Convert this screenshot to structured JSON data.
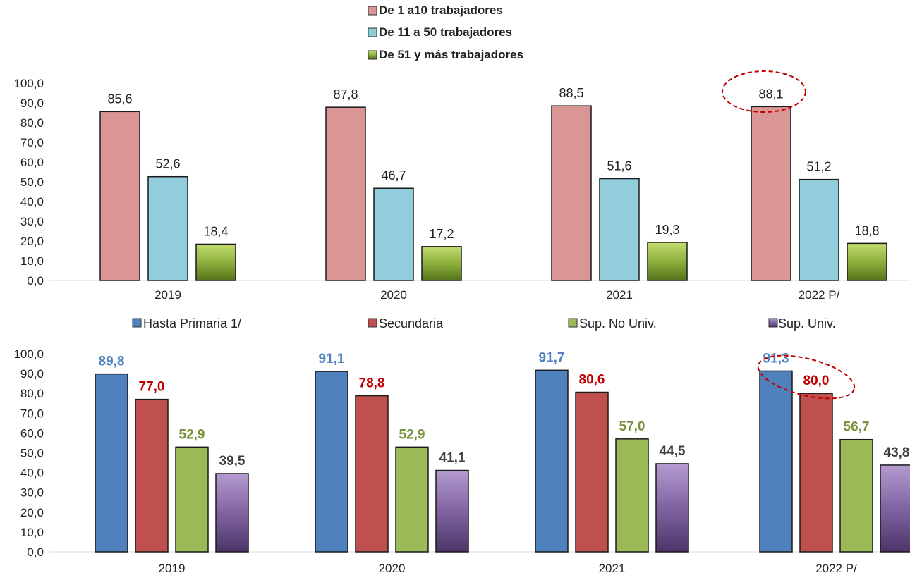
{
  "chart_data": [
    {
      "type": "bar",
      "categories": [
        "2019",
        "2020",
        "2021",
        "2022 P/"
      ],
      "series": [
        {
          "name": "De 1 a10 trabajadores",
          "values": [
            85.6,
            87.8,
            88.5,
            88.1
          ],
          "labels": [
            "85,6",
            "87,8",
            "88,5",
            "88,1"
          ],
          "color": "#DA9694"
        },
        {
          "name": "De 11 a 50 trabajadores",
          "values": [
            52.6,
            46.7,
            51.6,
            51.2
          ],
          "labels": [
            "52,6",
            "46,7",
            "51,6",
            "51,2"
          ],
          "color": "#92CDDC"
        },
        {
          "name": "De 51 y más trabajadores",
          "values": [
            18.4,
            17.2,
            19.3,
            18.8
          ],
          "labels": [
            "18,4",
            "17,2",
            "19,3",
            "18,8"
          ],
          "color": "#8DB03C"
        }
      ],
      "y_ticks": [
        "0,0",
        "10,0",
        "20,0",
        "30,0",
        "40,0",
        "50,0",
        "60,0",
        "70,0",
        "80,0",
        "90,0",
        "100,0"
      ],
      "ylim": [
        0,
        100
      ],
      "legend_position": "top-center",
      "highlight": "2022 P/ – De 1 a10 trabajadores",
      "grid": false
    },
    {
      "type": "bar",
      "categories": [
        "2019",
        "2020",
        "2021",
        "2022 P/"
      ],
      "series": [
        {
          "name": "Hasta Primaria 1/",
          "values": [
            89.8,
            91.1,
            91.7,
            91.3
          ],
          "labels": [
            "89,8",
            "91,1",
            "91,7",
            "91,3"
          ],
          "color": "#4F81BD",
          "label_color": "#4F81BD"
        },
        {
          "name": "Secundaria",
          "values": [
            77.0,
            78.8,
            80.6,
            80.0
          ],
          "labels": [
            "77,0",
            "78,8",
            "80,6",
            "80,0"
          ],
          "color": "#C0504D",
          "label_color": "#C00000"
        },
        {
          "name": "Sup. No Univ.",
          "values": [
            52.9,
            52.9,
            57.0,
            56.7
          ],
          "labels": [
            "52,9",
            "52,9",
            "57,0",
            "56,7"
          ],
          "color": "#9BBB59",
          "label_color": "#77933C"
        },
        {
          "name": "Sup. Univ.",
          "values": [
            39.5,
            41.1,
            44.5,
            43.8
          ],
          "labels": [
            "39,5",
            "41,1",
            "44,5",
            "43,8"
          ],
          "color": "#8064A2",
          "label_color": "#404040"
        }
      ],
      "y_ticks": [
        "0,0",
        "10,0",
        "20,0",
        "30,0",
        "40,0",
        "50,0",
        "60,0",
        "70,0",
        "80,0",
        "90,0",
        "100,0"
      ],
      "ylim": [
        0,
        100
      ],
      "legend_position": "top",
      "highlight": "2022 P/ – Hasta Primaria 1/, Secundaria",
      "grid": false
    }
  ]
}
